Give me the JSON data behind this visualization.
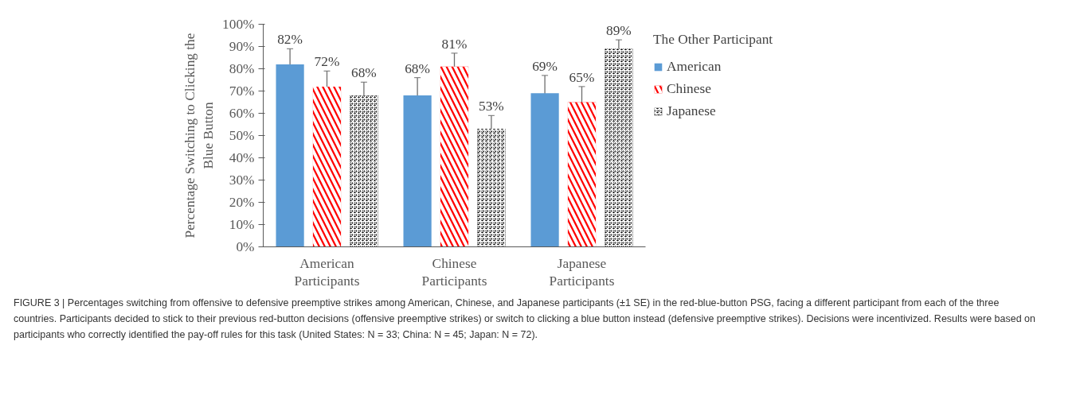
{
  "chart_data": {
    "type": "bar",
    "ylabel": "Percentage Switching to Clicking the Blue Button",
    "categories": [
      "American Participants",
      "Chinese Participants",
      "Japanese Participants"
    ],
    "series": [
      {
        "name": "American",
        "color": "#5b9bd5",
        "values": [
          82,
          68,
          69
        ],
        "errors": [
          7,
          8,
          8
        ],
        "value_labels": [
          "82%",
          "68%",
          "69%"
        ]
      },
      {
        "name": "Chinese",
        "color": "#ff0000",
        "values": [
          72,
          81,
          65
        ],
        "errors": [
          7,
          6,
          7
        ],
        "value_labels": [
          "72%",
          "81%",
          "65%"
        ]
      },
      {
        "name": "Japanese",
        "color": "#000000",
        "values": [
          68,
          53,
          89
        ],
        "errors": [
          6,
          6,
          4
        ],
        "value_labels": [
          "68%",
          "53%",
          "89%"
        ]
      }
    ],
    "legend_title": "The Other Participant",
    "legend": "right",
    "ylim": [
      0,
      100
    ],
    "yticks": [
      {
        "value": 0,
        "label": "0%"
      },
      {
        "value": 10,
        "label": "10%"
      },
      {
        "value": 20,
        "label": "20%"
      },
      {
        "value": 30,
        "label": "30%"
      },
      {
        "value": 40,
        "label": "40%"
      },
      {
        "value": 50,
        "label": "50%"
      },
      {
        "value": 60,
        "label": "60%"
      },
      {
        "value": 70,
        "label": "70%"
      },
      {
        "value": 80,
        "label": "80%"
      },
      {
        "value": 90,
        "label": "90%"
      },
      {
        "value": 100,
        "label": "100%"
      }
    ],
    "grid": false,
    "annotations": [
      "FIGURE 3 | Percentages switching from offensive to defensive preemptive strikes among American, Chinese, and Japanese participants (±1 SE) in the red-blue-button PSG, facing a different participant from each of the three countries. Participants decided to stick to their previous red-button decisions (offensive preemptive strikes) or switch to clicking a blue button instead (defensive preemptive strikes). Decisions were incentivized. Results were based on participants who correctly identified the pay-off rules for this task (United States: N = 33; China: N = 45; Japan: N = 72)."
    ]
  }
}
